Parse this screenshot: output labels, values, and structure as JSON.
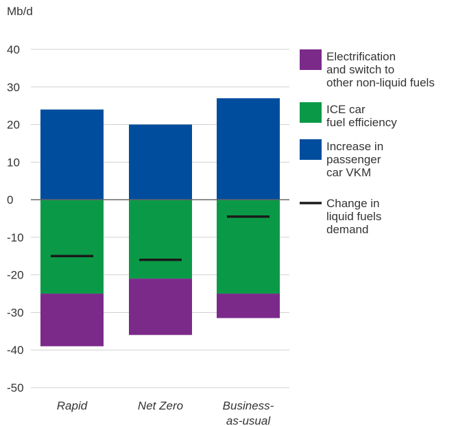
{
  "chart_data": {
    "type": "bar",
    "stacked": true,
    "unit_label": "Mb/d",
    "categories": [
      [
        "Rapid"
      ],
      [
        "Net Zero"
      ],
      [
        "Business-",
        "as-usual"
      ]
    ],
    "ylim": [
      -50,
      40
    ],
    "yticks": [
      40,
      30,
      20,
      10,
      0,
      -10,
      -20,
      -30,
      -40,
      -50
    ],
    "grid": true,
    "legend_position": "right",
    "colors": {
      "electrification": "#7b2a8a",
      "ice": "#0a9a47",
      "vkm": "#004d9e",
      "change": "#1a1a1a",
      "grid": "#d0d0d0",
      "zero": "#666666"
    },
    "series": [
      {
        "key": "vkm",
        "values": [
          24,
          20,
          27
        ]
      },
      {
        "key": "ice",
        "values": [
          -25,
          -21,
          -25
        ]
      },
      {
        "key": "electrification",
        "values": [
          -14,
          -15,
          -6.5
        ]
      },
      {
        "key": "change",
        "marker": "line",
        "values": [
          -15,
          -16,
          -4.5
        ]
      }
    ],
    "legend": [
      {
        "key": "electrification",
        "lines": [
          "Electrification",
          "and switch to",
          "other non-liquid fuels"
        ]
      },
      {
        "key": "ice",
        "lines": [
          "ICE car",
          "fuel efficiency"
        ]
      },
      {
        "key": "vkm",
        "lines": [
          "Increase in",
          "passenger",
          "car VKM"
        ]
      },
      {
        "key": "change",
        "lines": [
          "Change in",
          "liquid fuels",
          "demand"
        ]
      }
    ]
  }
}
